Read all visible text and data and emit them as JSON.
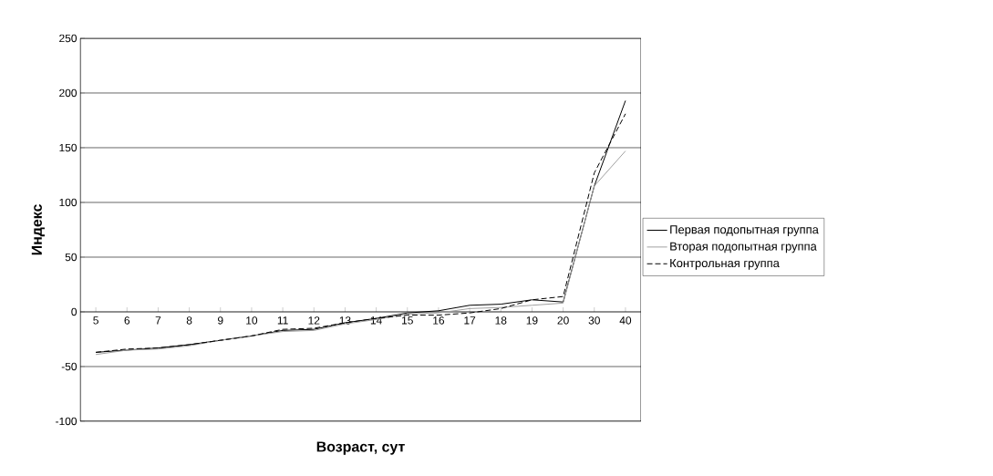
{
  "chart_data": {
    "type": "line",
    "xlabel": "Возраст, сут",
    "ylabel": "Индекс",
    "categories": [
      "5",
      "6",
      "7",
      "8",
      "9",
      "10",
      "11",
      "12",
      "13",
      "14",
      "15",
      "16",
      "17",
      "18",
      "19",
      "20",
      "30",
      "40"
    ],
    "series": [
      {
        "name": "Первая подопытная группа",
        "color": "#000000",
        "line_style": "solid",
        "values": [
          -37,
          -35,
          -33,
          -30,
          -26,
          -22,
          -17,
          -16,
          -10,
          -6,
          -1,
          1,
          6,
          7,
          11,
          9,
          115,
          193
        ]
      },
      {
        "name": "Вторая подопытная группа",
        "color": "#a0a0a0",
        "line_style": "solid",
        "values": [
          -39,
          -35,
          -34,
          -31,
          -26,
          -22,
          -18,
          -17,
          -11,
          -7,
          -2,
          -1,
          3,
          4,
          6,
          8,
          115,
          147
        ]
      },
      {
        "name": "Контрольная группа",
        "color": "#000000",
        "line_style": "dashed",
        "values": [
          -37,
          -34,
          -33,
          -30,
          -26,
          -22,
          -16,
          -15,
          -10,
          -6,
          -3,
          -3,
          -1,
          3,
          11,
          14,
          127,
          181
        ]
      }
    ],
    "ylim": [
      -100,
      250
    ],
    "yticks": [
      -100,
      -50,
      0,
      50,
      100,
      150,
      200,
      250
    ],
    "grid": "y",
    "legend": "right",
    "marker": "none"
  }
}
